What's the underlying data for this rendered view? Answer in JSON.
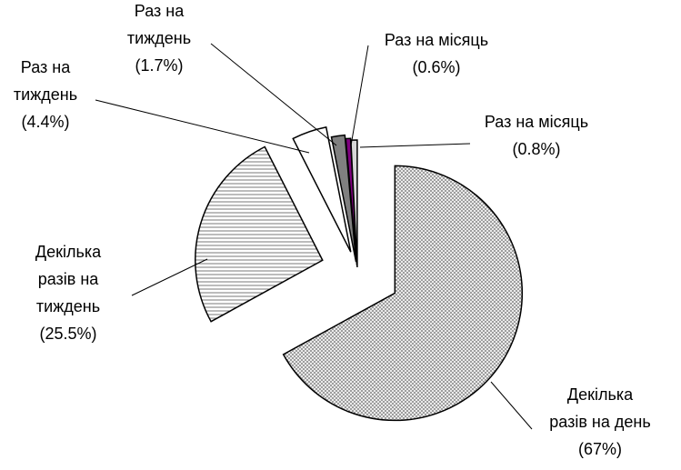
{
  "chart_data": {
    "type": "pie",
    "categories": [
      "Декілька\nразів на день",
      "Декілька\nразів на\nтиждень",
      "Раз на\nтиждень",
      "Раз на\nтиждень",
      "Раз на місяць",
      "Раз на місяць"
    ],
    "values": [
      67,
      25.5,
      4.4,
      1.7,
      0.6,
      0.8
    ],
    "value_labels": [
      "(67%)",
      "(25.5%)",
      "(4.4%)",
      "(1.7%)",
      "(0.6%)",
      "(0.8%)"
    ],
    "colors": [
      "#c8c8c8",
      "#ffffff",
      "#ffffff",
      "#808080",
      "#800080",
      "#d8d8d8"
    ]
  }
}
